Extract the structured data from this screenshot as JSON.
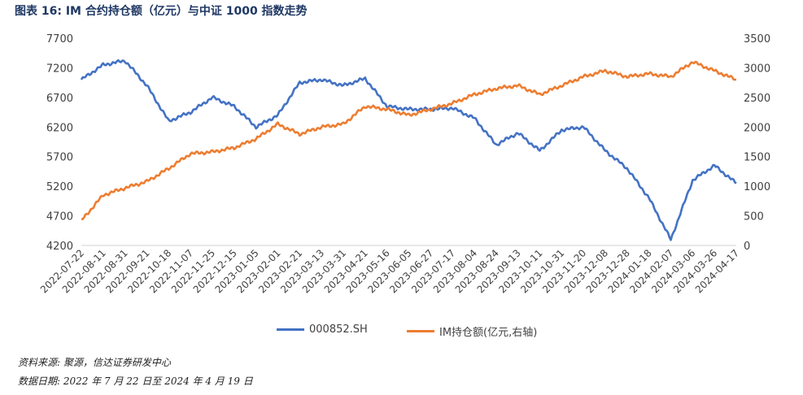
{
  "title": "图表 16:  IM 合约持仓额（亿元）与中证 1000 指数走势",
  "source_note": "资料来源:  聚源，信达证券研发中心",
  "date_note": "数据日期:  2022 年 7 月 22 日至 2024 年 4 月 19 日",
  "colors": {
    "index": "#4472c4",
    "oi": "#ed7d31",
    "title": "#1f3864"
  },
  "chart_data": {
    "type": "line",
    "title": "IM 合约持仓额（亿元）与中证 1000 指数走势",
    "legend_position": "bottom",
    "grid": false,
    "x_tick_labels": [
      "2022-07-22",
      "2022-08-11",
      "2022-08-31",
      "2022-09-21",
      "2022-10-18",
      "2022-11-07",
      "2022-11-25",
      "2022-12-15",
      "2023-01-05",
      "2023-02-01",
      "2023-02-21",
      "2023-03-13",
      "2023-03-31",
      "2023-04-21",
      "2023-05-16",
      "2023-06-05",
      "2023-06-27",
      "2023-07-17",
      "2023-08-04",
      "2023-08-24",
      "2023-09-13",
      "2023-10-11",
      "2023-10-31",
      "2023-11-20",
      "2023-12-08",
      "2023-12-28",
      "2024-01-18",
      "2024-02-07",
      "2024-03-06",
      "2024-03-26",
      "2024-04-17"
    ],
    "y_left": {
      "min": 4200,
      "max": 7700,
      "ticks": [
        4200,
        4700,
        5200,
        5700,
        6200,
        6700,
        7200,
        7700
      ]
    },
    "y_right": {
      "min": 0,
      "max": 3500,
      "ticks": [
        0,
        500,
        1000,
        1500,
        2000,
        2500,
        3000,
        3500
      ]
    },
    "series": [
      {
        "name": "000852.SH",
        "axis": "left",
        "color": "#4472c4",
        "x": [
          0,
          1,
          2,
          3,
          4,
          5,
          6,
          7,
          8,
          9,
          10,
          11,
          12,
          13,
          14,
          15,
          16,
          17,
          18,
          19,
          20,
          21,
          22,
          23,
          24,
          25,
          26,
          27,
          28,
          29,
          30
        ],
        "values": [
          7000,
          7250,
          7320,
          6900,
          6300,
          6450,
          6700,
          6550,
          6200,
          6400,
          6950,
          7000,
          6900,
          7020,
          6550,
          6500,
          6500,
          6520,
          6350,
          5900,
          6100,
          5800,
          6150,
          6200,
          5800,
          5500,
          5000,
          4300,
          5300,
          5550,
          5250
        ]
      },
      {
        "name": "IM持仓额(亿元,右轴)",
        "axis": "right",
        "color": "#ed7d31",
        "x": [
          0,
          1,
          2,
          3,
          4,
          5,
          6,
          7,
          8,
          9,
          10,
          11,
          12,
          13,
          14,
          15,
          16,
          17,
          18,
          19,
          20,
          21,
          22,
          23,
          24,
          25,
          26,
          27,
          28,
          29,
          30
        ],
        "values": [
          420,
          850,
          970,
          1080,
          1300,
          1550,
          1580,
          1650,
          1800,
          2050,
          1880,
          2000,
          2050,
          2350,
          2300,
          2200,
          2300,
          2400,
          2550,
          2650,
          2700,
          2550,
          2700,
          2850,
          2950,
          2850,
          2900,
          2850,
          3100,
          2950,
          2800
        ]
      }
    ]
  }
}
